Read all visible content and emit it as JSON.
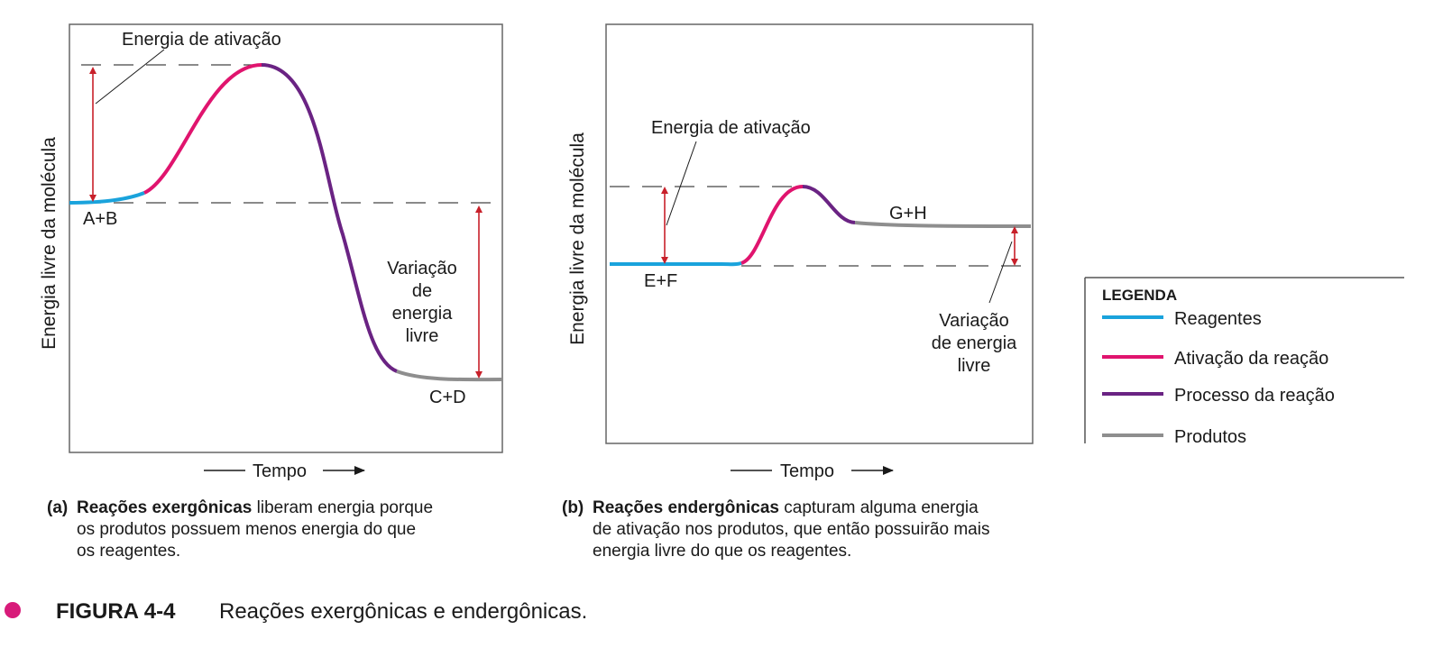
{
  "colors": {
    "reagentes": "#1aa3dc",
    "ativacao": "#e0146e",
    "processo": "#6a2383",
    "produtos": "#8e8e8e",
    "arrow": "#c8202a",
    "figure_bullet": "#d81b7a"
  },
  "panel_a": {
    "y_label": "Energia livre da molécula",
    "x_label": "Tempo",
    "activation_label": "Energia de ativação",
    "reactants": "A+B",
    "products": "C+D",
    "delta_label": [
      "Variação",
      "de",
      "energia",
      "livre"
    ],
    "caption_tag": "(a)",
    "caption_bold": "Reações exergônicas",
    "caption_lines": [
      "liberam energia porque",
      "os produtos possuem menos energia do que",
      "os reagentes."
    ]
  },
  "panel_b": {
    "y_label": "Energia livre da molécula",
    "x_label": "Tempo",
    "activation_label": "Energia de ativação",
    "reactants": "E+F",
    "products": "G+H",
    "delta_label": [
      "Variação",
      "de energia",
      "livre"
    ],
    "caption_tag": "(b)",
    "caption_bold": "Reações endergônicas",
    "caption_lines": [
      "capturam alguma energia",
      "de ativação nos produtos, que então possuirão mais",
      "energia livre do que os reagentes."
    ]
  },
  "legend": {
    "title": "LEGENDA",
    "items": [
      {
        "label": "Reagentes",
        "color": "#1aa3dc"
      },
      {
        "label": "Ativação da reação",
        "color": "#e0146e"
      },
      {
        "label": "Processo da reação",
        "color": "#6a2383"
      },
      {
        "label": "Produtos",
        "color": "#8e8e8e"
      }
    ]
  },
  "figure": {
    "number": "FIGURA 4-4",
    "title": "Reações exergônicas e endergônicas."
  }
}
